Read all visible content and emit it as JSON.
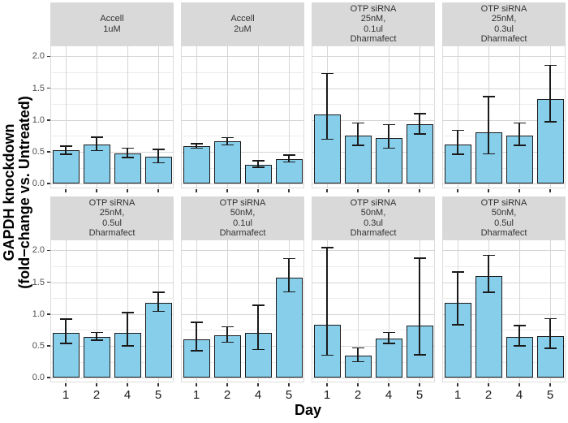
{
  "figure": {
    "x_title": "Day",
    "y_title_line1": "GAPDH knockdown",
    "y_title_line2": "(fold−change vs. Untreated)"
  },
  "chart_data": {
    "type": "bar",
    "title": "",
    "xlabel": "Day",
    "ylabel": "GAPDH knockdown (fold−change vs. Untreated)",
    "categories": [
      "1",
      "2",
      "4",
      "5"
    ],
    "ylim": [
      -0.075,
      2.17
    ],
    "yticks": [
      0.0,
      0.5,
      1.0,
      1.5,
      2.0
    ],
    "ytick_labels": [
      "0.0",
      "0.5",
      "1.0",
      "1.5",
      "2.0"
    ],
    "yticks_minor": [
      0.25,
      0.75,
      1.25,
      1.75
    ],
    "grid": true,
    "legend": false,
    "error_bars": true,
    "bar_fill": "#87CEEB",
    "bar_stroke": "#1A1A1A",
    "strip_bg": "#D9D9D9",
    "facets": [
      {
        "label_lines": [
          "Accell",
          "1uM"
        ],
        "values": [
          0.52,
          0.62,
          0.48,
          0.42
        ],
        "error_low": [
          0.46,
          0.52,
          0.41,
          0.33
        ],
        "error_high": [
          0.59,
          0.73,
          0.56,
          0.54
        ]
      },
      {
        "label_lines": [
          "Accell",
          "2uM"
        ],
        "values": [
          0.59,
          0.66,
          0.3,
          0.39
        ],
        "error_low": [
          0.56,
          0.61,
          0.26,
          0.34
        ],
        "error_high": [
          0.63,
          0.72,
          0.36,
          0.45
        ]
      },
      {
        "label_lines": [
          "OTP siRNA",
          "25nM,",
          "0.1ul",
          "Dharmafect"
        ],
        "values": [
          1.09,
          0.76,
          0.72,
          0.93
        ],
        "error_low": [
          0.7,
          0.6,
          0.56,
          0.78
        ],
        "error_high": [
          1.73,
          0.95,
          0.93,
          1.1
        ]
      },
      {
        "label_lines": [
          "OTP siRNA",
          "25nM,",
          "0.3ul",
          "Dharmafect"
        ],
        "values": [
          0.62,
          0.8,
          0.75,
          1.33
        ],
        "error_low": [
          0.46,
          0.47,
          0.6,
          0.97
        ],
        "error_high": [
          0.84,
          1.37,
          0.95,
          1.86
        ]
      },
      {
        "label_lines": [
          "OTP siRNA",
          "25nM,",
          "0.5ul",
          "Dharmafect"
        ],
        "values": [
          0.71,
          0.64,
          0.71,
          1.17
        ],
        "error_low": [
          0.54,
          0.59,
          0.5,
          1.04
        ],
        "error_high": [
          0.92,
          0.71,
          1.02,
          1.34
        ]
      },
      {
        "label_lines": [
          "OTP siRNA",
          "50nM,",
          "0.1ul",
          "Dharmafect"
        ],
        "values": [
          0.6,
          0.67,
          0.7,
          1.57
        ],
        "error_low": [
          0.42,
          0.56,
          0.44,
          1.35
        ],
        "error_high": [
          0.87,
          0.8,
          1.14,
          1.87
        ]
      },
      {
        "label_lines": [
          "OTP siRNA",
          "50nM,",
          "0.3ul",
          "Dharmafect"
        ],
        "values": [
          0.83,
          0.35,
          0.61,
          0.82
        ],
        "error_low": [
          0.35,
          0.25,
          0.54,
          0.36
        ],
        "error_high": [
          2.04,
          0.47,
          0.71,
          1.88
        ]
      },
      {
        "label_lines": [
          "OTP siRNA",
          "50nM,",
          "0.5ul",
          "Dharmafect"
        ],
        "values": [
          1.17,
          1.6,
          0.64,
          0.65
        ],
        "error_low": [
          0.83,
          1.34,
          0.5,
          0.46
        ],
        "error_high": [
          1.66,
          1.92,
          0.82,
          0.93
        ]
      }
    ]
  }
}
